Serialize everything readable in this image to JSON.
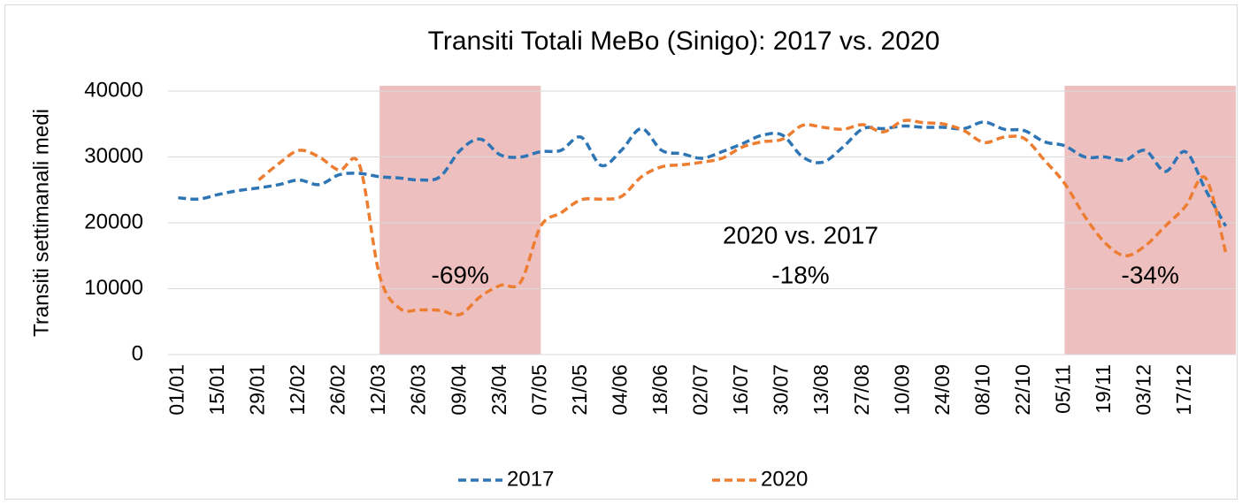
{
  "chart_data": {
    "type": "line",
    "title": "Transiti Totali MeBo (Sinigo): 2017 vs. 2020",
    "y_label": "Transiti settimanali medi",
    "categories": [
      "01/01",
      null,
      "15/01",
      null,
      "29/01",
      null,
      "12/02",
      null,
      "26/02",
      null,
      "12/03",
      null,
      "26/03",
      null,
      "09/04",
      null,
      "23/04",
      null,
      "07/05",
      null,
      "21/05",
      null,
      "04/06",
      null,
      "18/06",
      null,
      "02/07",
      null,
      "16/07",
      null,
      "30/07",
      null,
      "13/08",
      null,
      "27/08",
      null,
      "10/09",
      null,
      "24/09",
      null,
      "08/10",
      null,
      "22/10",
      null,
      "05/11",
      null,
      "19/11",
      null,
      "03/12",
      null,
      "17/12",
      null,
      null
    ],
    "series": [
      {
        "name": "2017",
        "color": "#2e75b6",
        "values": [
          23800,
          23600,
          24300,
          24900,
          25300,
          25800,
          26500,
          25800,
          27300,
          27500,
          27000,
          26800,
          26500,
          27000,
          31000,
          32700,
          30300,
          30000,
          30800,
          31000,
          33000,
          28700,
          31000,
          34300,
          31000,
          30500,
          29800,
          30800,
          32000,
          33300,
          33300,
          30000,
          29200,
          31500,
          34300,
          34300,
          34700,
          34500,
          34500,
          34300,
          35300,
          34200,
          34000,
          32300,
          31700,
          30000,
          30000,
          29500,
          31000,
          27800,
          30800,
          25000,
          19500
        ]
      },
      {
        "name": "2020",
        "color": "#ed7d31",
        "values": [
          null,
          null,
          null,
          null,
          26500,
          29000,
          31000,
          30000,
          28000,
          28800,
          12000,
          7000,
          6800,
          6700,
          6100,
          8800,
          10500,
          11000,
          19500,
          21500,
          23500,
          23600,
          24000,
          27000,
          28500,
          28800,
          29200,
          29800,
          31500,
          32300,
          32700,
          34800,
          34500,
          34200,
          34900,
          33800,
          35500,
          35200,
          35000,
          34000,
          32200,
          33000,
          32800,
          29500,
          26000,
          21000,
          17000,
          15000,
          16500,
          19500,
          22500,
          26800,
          15500
        ]
      }
    ],
    "ylim": [
      0,
      40000
    ],
    "yticks": [
      0,
      10000,
      20000,
      30000,
      40000
    ],
    "grid": true,
    "dashed": true,
    "legend": "bottom",
    "highlight_color": "#eebfbf",
    "highlights": [
      {
        "label": "-69%",
        "from": "12/03",
        "to": "07/05"
      },
      {
        "label": "-34%",
        "from": "05/11",
        "to": null
      }
    ],
    "annotations": [
      "2020 vs. 2017",
      "-18%"
    ]
  }
}
